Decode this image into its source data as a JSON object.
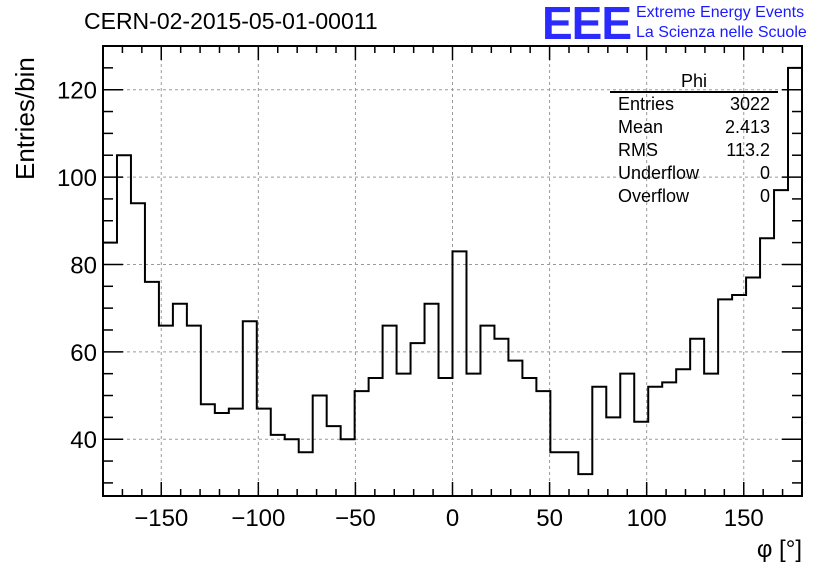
{
  "title": "CERN-02-2015-05-01-00011",
  "logo": {
    "mark": "EEE",
    "line1": "Extreme Energy Events",
    "line2": "La Scienza nelle Scuole",
    "color": "#2b2bff"
  },
  "stats": {
    "name": "Phi",
    "rows": [
      {
        "label": "Entries",
        "value": "3022"
      },
      {
        "label": "Mean",
        "value": "2.413"
      },
      {
        "label": "RMS",
        "value": "113.2"
      },
      {
        "label": "Underflow",
        "value": "0"
      },
      {
        "label": "Overflow",
        "value": "0"
      }
    ]
  },
  "chart_data": {
    "type": "histogram",
    "ylabel": "Entries/bin",
    "xlabel": "φ [°]",
    "xlim": [
      -180,
      180
    ],
    "ylim": [
      27,
      130
    ],
    "grid": true,
    "bin_width": 7.2,
    "x_ticks": [
      -150,
      -100,
      -50,
      0,
      50,
      100,
      150
    ],
    "x_tick_labels": [
      "−150",
      "−100",
      "−50",
      "0",
      "50",
      "100",
      "150"
    ],
    "y_ticks": [
      40,
      60,
      80,
      100,
      120
    ],
    "y_tick_labels": [
      "40",
      "60",
      "80",
      "100",
      "120"
    ],
    "values": [
      85,
      105,
      94,
      76,
      66,
      71,
      66,
      48,
      46,
      47,
      67,
      47,
      41,
      40,
      37,
      50,
      43,
      40,
      51,
      54,
      66,
      55,
      62,
      71,
      54,
      83,
      55,
      66,
      63,
      58,
      54,
      51,
      37,
      37,
      32,
      52,
      45,
      55,
      44,
      52,
      53,
      56,
      63,
      55,
      72,
      73,
      77,
      86,
      97,
      125
    ],
    "line_color": "#000000"
  }
}
